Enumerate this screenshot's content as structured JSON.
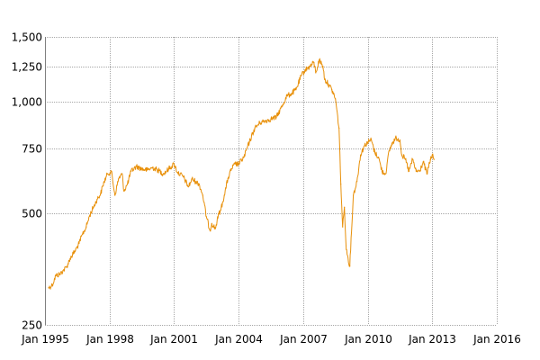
{
  "chart_data": {
    "type": "line",
    "title": "",
    "xlabel": "",
    "ylabel": "",
    "y_scale": "log",
    "ylim": [
      250,
      1500
    ],
    "xlim": [
      "1995-01",
      "2016-01"
    ],
    "grid": true,
    "line_color": "#e8900a",
    "y_ticks": [
      {
        "value": 250,
        "label": "250"
      },
      {
        "value": 500,
        "label": "500"
      },
      {
        "value": 750,
        "label": "750"
      },
      {
        "value": 1000,
        "label": "1,000"
      },
      {
        "value": 1250,
        "label": "1,250"
      },
      {
        "value": 1500,
        "label": "1,500"
      }
    ],
    "x_ticks": [
      {
        "value": "1995-01",
        "label": "Jan 1995"
      },
      {
        "value": "1998-01",
        "label": "Jan 1998"
      },
      {
        "value": "2001-01",
        "label": "Jan 2001"
      },
      {
        "value": "2004-01",
        "label": "Jan 2004"
      },
      {
        "value": "2007-01",
        "label": "Jan 2007"
      },
      {
        "value": "2010-01",
        "label": "Jan 2010"
      },
      {
        "value": "2013-01",
        "label": "Jan 2013"
      },
      {
        "value": "2016-01",
        "label": "Jan 2016"
      }
    ],
    "series": [
      {
        "name": "",
        "x": [
          "1995-03",
          "1995-05",
          "1995-07",
          "1995-09",
          "1995-11",
          "1996-01",
          "1996-03",
          "1996-06",
          "1996-08",
          "1996-10",
          "1996-12",
          "1997-02",
          "1997-04",
          "1997-06",
          "1997-08",
          "1997-10",
          "1997-12",
          "1998-02",
          "1998-04",
          "1998-06",
          "1998-08",
          "1998-09",
          "1998-11",
          "1999-01",
          "1999-04",
          "1999-07",
          "1999-10",
          "2000-01",
          "2000-04",
          "2000-07",
          "2000-10",
          "2001-01",
          "2001-03",
          "2001-06",
          "2001-09",
          "2001-11",
          "2002-01",
          "2002-03",
          "2002-05",
          "2002-07",
          "2002-09",
          "2002-10",
          "2002-12",
          "2003-02",
          "2003-03",
          "2003-05",
          "2003-07",
          "2003-09",
          "2003-11",
          "2004-01",
          "2004-04",
          "2004-07",
          "2004-10",
          "2005-01",
          "2005-04",
          "2005-07",
          "2005-10",
          "2006-01",
          "2006-04",
          "2006-06",
          "2006-09",
          "2006-12",
          "2007-02",
          "2007-05",
          "2007-07",
          "2007-08",
          "2007-10",
          "2007-12",
          "2008-01",
          "2008-03",
          "2008-05",
          "2008-07",
          "2008-09",
          "2008-10",
          "2008-11",
          "2008-12",
          "2009-01",
          "2009-03",
          "2009-05",
          "2009-07",
          "2009-09",
          "2009-11",
          "2010-01",
          "2010-03",
          "2010-05",
          "2010-07",
          "2010-09",
          "2010-11",
          "2011-01",
          "2011-03",
          "2011-05",
          "2011-07",
          "2011-08",
          "2011-10",
          "2011-12",
          "2012-02",
          "2012-04",
          "2012-06",
          "2012-08",
          "2012-10",
          "2012-12",
          "2013-01",
          "2013-02"
        ],
        "values": [
          315,
          320,
          340,
          342,
          350,
          358,
          378,
          398,
          415,
          440,
          460,
          495,
          520,
          545,
          565,
          610,
          640,
          650,
          560,
          620,
          640,
          575,
          600,
          650,
          670,
          660,
          655,
          665,
          655,
          640,
          660,
          680,
          645,
          630,
          590,
          620,
          610,
          600,
          560,
          490,
          450,
          470,
          455,
          500,
          510,
          560,
          620,
          660,
          680,
          680,
          710,
          780,
          850,
          880,
          890,
          900,
          910,
          970,
          1040,
          1050,
          1080,
          1180,
          1220,
          1250,
          1280,
          1200,
          1300,
          1250,
          1150,
          1120,
          1080,
          1020,
          850,
          600,
          460,
          520,
          400,
          360,
          560,
          610,
          720,
          760,
          780,
          790,
          730,
          710,
          650,
          640,
          740,
          780,
          800,
          790,
          720,
          700,
          650,
          700,
          650,
          650,
          690,
          640,
          700,
          720,
          700
        ]
      }
    ]
  }
}
